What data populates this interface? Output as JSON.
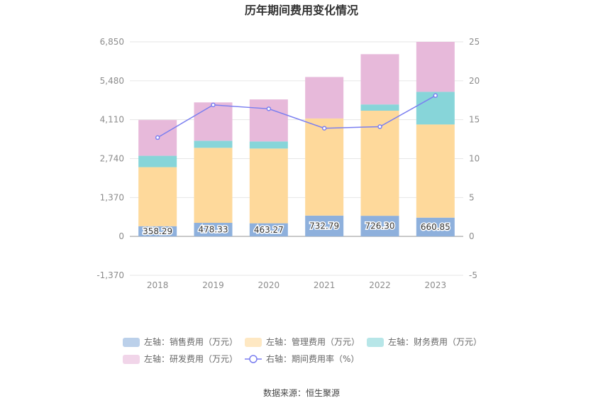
{
  "chart_data": {
    "type": "bar",
    "title": "历年期间费用变化情况",
    "categories": [
      "2018",
      "2019",
      "2020",
      "2021",
      "2022",
      "2023"
    ],
    "left_axis": {
      "min": -1370,
      "max": 6850,
      "ticks": [
        "-1,370",
        "0",
        "1,370",
        "2,740",
        "4,110",
        "5,480",
        "6,850"
      ],
      "tick_values": [
        -1370,
        0,
        1370,
        2740,
        4110,
        5480,
        6850
      ]
    },
    "right_axis": {
      "min": -5,
      "max": 25,
      "ticks": [
        "-5",
        "0",
        "5",
        "10",
        "15",
        "20",
        "25"
      ],
      "tick_values": [
        -5,
        0,
        5,
        10,
        15,
        20,
        25
      ]
    },
    "series": [
      {
        "name": "左轴：销售费用（万元）",
        "type": "bar",
        "color": "#8eb0dc",
        "values": [
          358.29,
          478.33,
          463.27,
          732.79,
          726.3,
          660.85
        ],
        "labels": [
          "358.29",
          "478.33",
          "463.27",
          "732.79",
          "726.30",
          "660.85"
        ]
      },
      {
        "name": "左轴：管理费用（万元）",
        "type": "bar",
        "color": "#fed99b",
        "values": [
          2080,
          2640,
          2630,
          3420,
          3700,
          3280
        ]
      },
      {
        "name": "左轴：财务费用（万元）",
        "type": "bar",
        "color": "#87d5d9",
        "values": [
          400,
          250,
          250,
          0,
          220,
          1150
        ]
      },
      {
        "name": "左轴：研发费用（万元）",
        "type": "bar",
        "color": "#e7b9da",
        "values": [
          1260,
          1350,
          1480,
          1460,
          1770,
          1760
        ]
      },
      {
        "name": "右轴：期间费用率（%）",
        "type": "line",
        "color": "#7b7ff0",
        "values": [
          12.7,
          16.9,
          16.4,
          13.9,
          14.1,
          18.1
        ]
      }
    ],
    "source": "数据来源：恒生聚源"
  }
}
